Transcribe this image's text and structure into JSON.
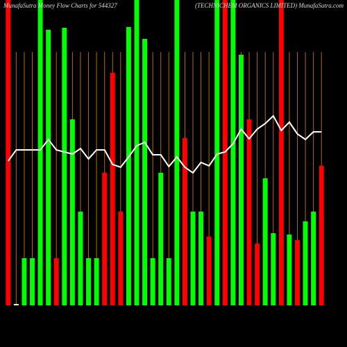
{
  "chart_data": {
    "type": "bar",
    "title": "MunafaSutra  Money Flow  Charts for 544327",
    "subtitle": "(TECHNICHEM ORGANICS LIMITED) MunafaSutra.com",
    "values": [
      440,
      2,
      68,
      68,
      440,
      397,
      68,
      400,
      268,
      135,
      68,
      68,
      191,
      335,
      135,
      401,
      440,
      384,
      68,
      191,
      68,
      440,
      241,
      135,
      135,
      99,
      440,
      440,
      440,
      361,
      268,
      89,
      183,
      104,
      440,
      102,
      94,
      121,
      135,
      201
    ],
    "colors": [
      "#ff0000",
      "#ffffff",
      "#00ff00",
      "#00ff00",
      "#00ff00",
      "#00ff00",
      "#ff0000",
      "#00ff00",
      "#00ff00",
      "#00ff00",
      "#00ff00",
      "#00ff00",
      "#ff0000",
      "#ff0000",
      "#ff0000",
      "#00ff00",
      "#00ff00",
      "#00ff00",
      "#00ff00",
      "#00ff00",
      "#00ff00",
      "#00ff00",
      "#ff0000",
      "#00ff00",
      "#00ff00",
      "#ff0000",
      "#00ff00",
      "#ff0000",
      "#00ff00",
      "#00ff00",
      "#ff0000",
      "#ff0000",
      "#00ff00",
      "#00ff00",
      "#ff0000",
      "#00ff00",
      "#ff0000",
      "#00ff00",
      "#00ff00",
      "#ff0000"
    ],
    "line": {
      "color": "#ffffff",
      "values": [
        208,
        224,
        224,
        224,
        224,
        239,
        224,
        221,
        218,
        226,
        211,
        224,
        224,
        203,
        199,
        214,
        230,
        235,
        217,
        217,
        200,
        214,
        199,
        191,
        206,
        201,
        218,
        221,
        233,
        254,
        240,
        254,
        262,
        273,
        252,
        264,
        247,
        239,
        250,
        250
      ]
    },
    "ylim": [
      0,
      440
    ],
    "grid_color": "#b86b00"
  }
}
